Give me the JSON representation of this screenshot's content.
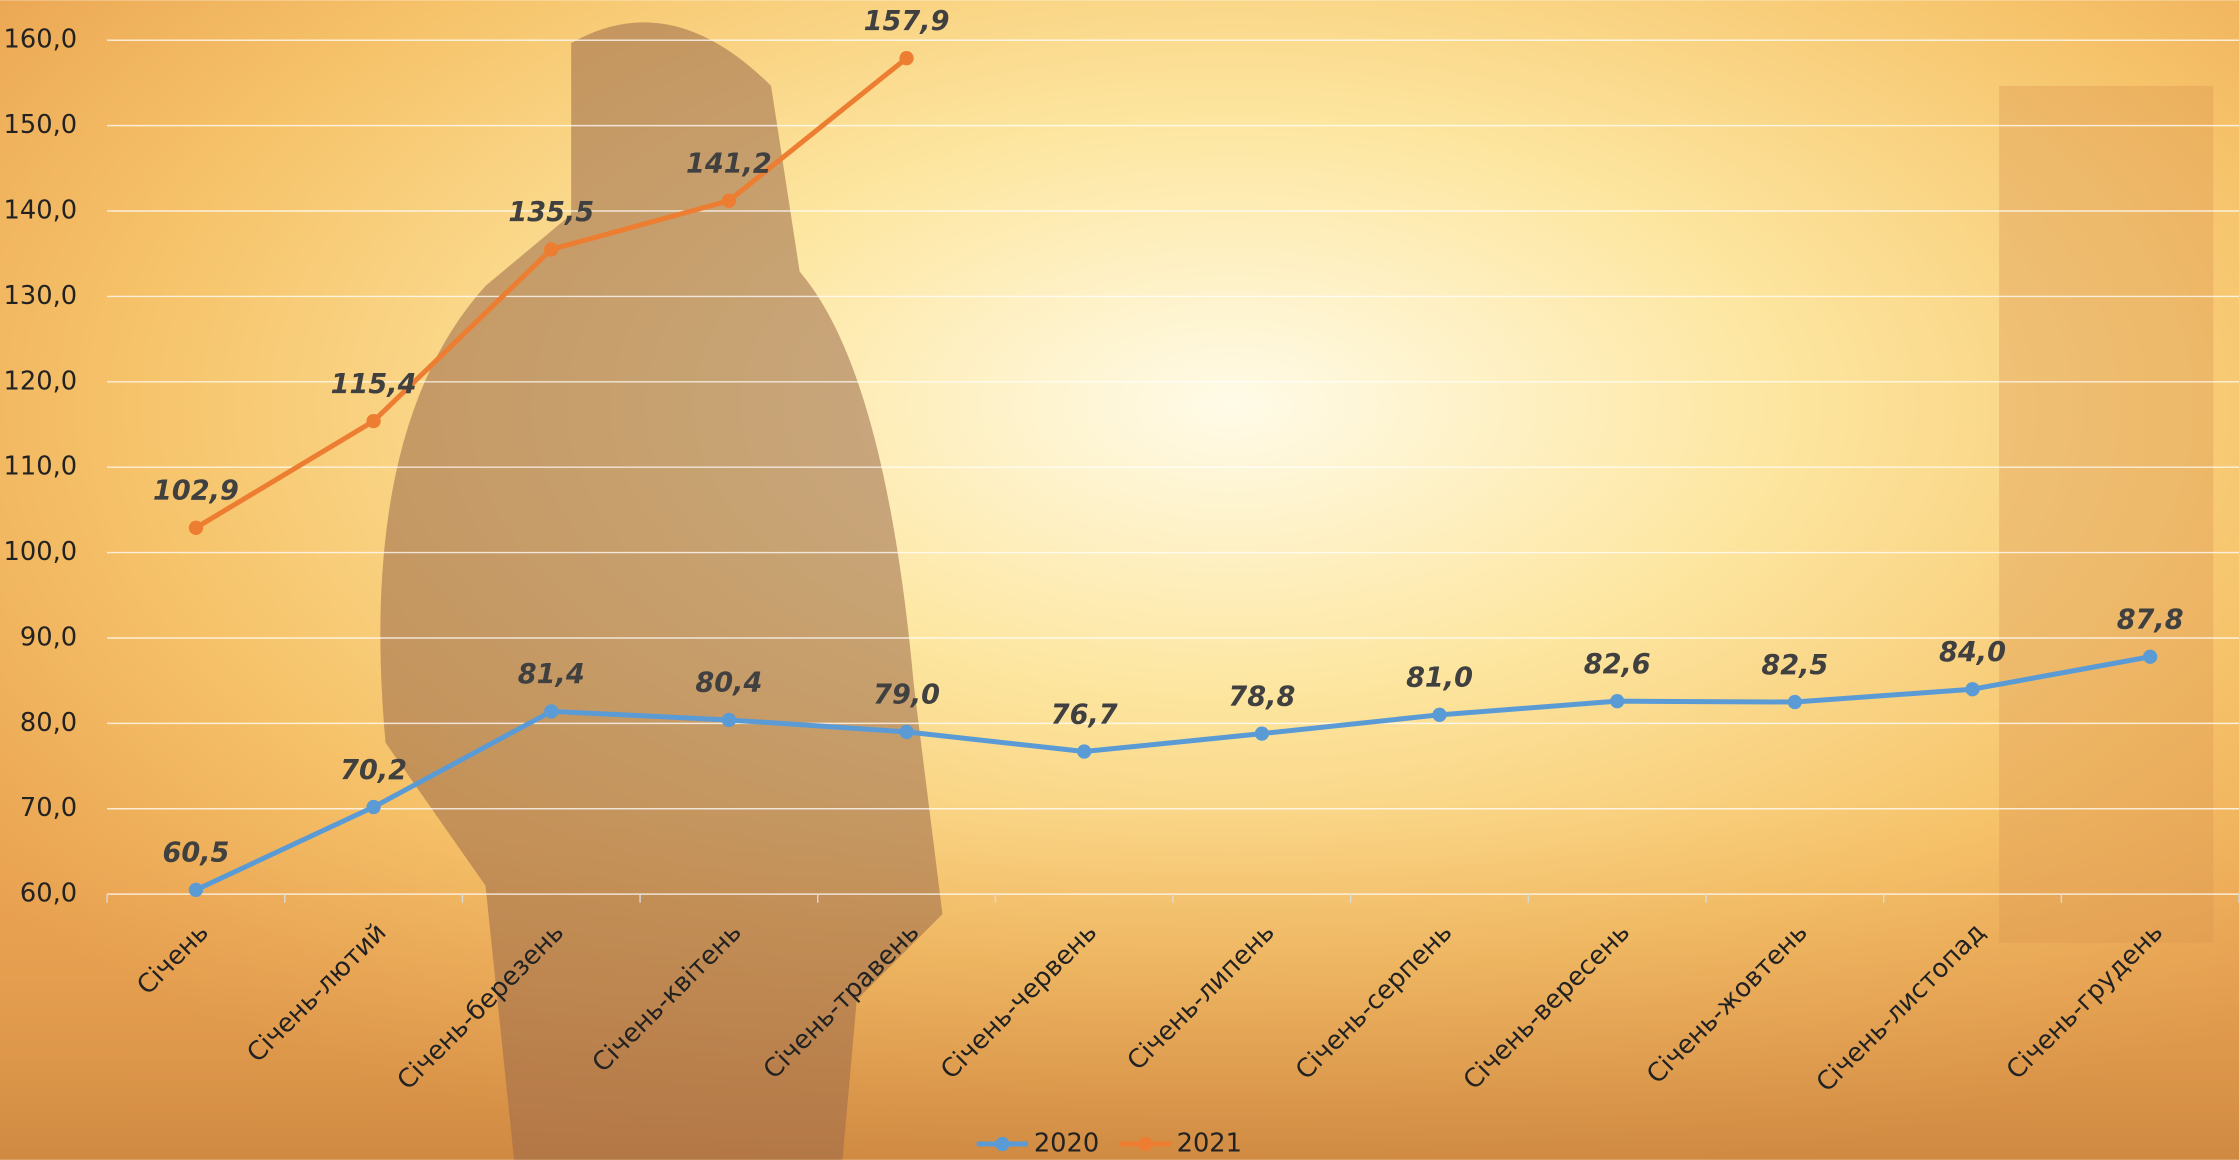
{
  "chart_data": {
    "type": "line",
    "categories": [
      "Січень",
      "Січень-лютий",
      "Січень-березень",
      "Січень-квітень",
      "Січень-травень",
      "Січень-червень",
      "Січень-липень",
      "Січень-серпень",
      "Січень-вересень",
      "Січень-жовтень",
      "Січень-листопад",
      "Січень-грудень"
    ],
    "series": [
      {
        "name": "2020",
        "color": "#5b9bd5",
        "values": [
          60.5,
          70.2,
          81.4,
          80.4,
          79.0,
          76.7,
          78.8,
          81.0,
          82.6,
          82.5,
          84.0,
          87.8
        ],
        "value_labels": [
          "60,5",
          "70,2",
          "81,4",
          "80,4",
          "79,0",
          "76,7",
          "78,8",
          "81,0",
          "82,6",
          "82,5",
          "84,0",
          "87,8"
        ]
      },
      {
        "name": "2021",
        "color": "#ed7d31",
        "values": [
          102.9,
          115.4,
          135.5,
          141.2,
          157.9,
          null,
          null,
          null,
          null,
          null,
          null,
          null
        ],
        "value_labels": [
          "102,9",
          "115,4",
          "135,5",
          "141,2",
          "157,9",
          null,
          null,
          null,
          null,
          null,
          null,
          null
        ]
      }
    ],
    "ylim": [
      60,
      160
    ],
    "yticks": [
      {
        "value": 60,
        "label": "60,0"
      },
      {
        "value": 70,
        "label": "70,0"
      },
      {
        "value": 80,
        "label": "80,0"
      },
      {
        "value": 90,
        "label": "90,0"
      },
      {
        "value": 100,
        "label": "100,0"
      },
      {
        "value": 110,
        "label": "110,0"
      },
      {
        "value": 120,
        "label": "120,0"
      },
      {
        "value": 130,
        "label": "130,0"
      },
      {
        "value": 140,
        "label": "140,0"
      },
      {
        "value": 150,
        "label": "150,0"
      },
      {
        "value": 160,
        "label": "160,0"
      }
    ],
    "grid": true,
    "legend": "bottom"
  }
}
